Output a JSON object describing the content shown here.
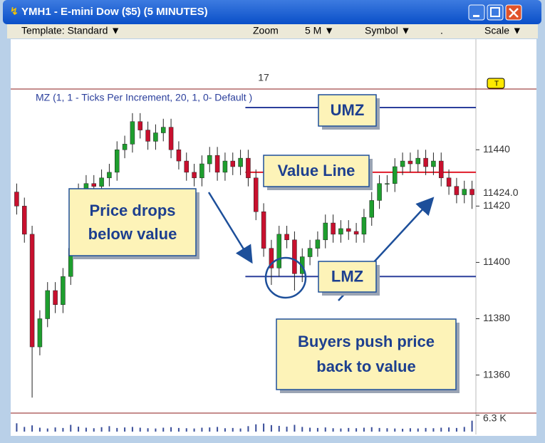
{
  "window": {
    "title": "YMH1 - E-mini Dow ($5) (5 MINUTES)",
    "toolbar": [
      "Template: Standard ▼",
      "Zoom",
      "5 M  ▼",
      "Symbol ▼",
      ".",
      "Scale ▼"
    ]
  },
  "chart_data": {
    "type": "candlestick",
    "indicator_label": "MZ (1, 1 - Ticks Per Increment, 20, 1, 0- Default )",
    "session_label": "17",
    "marker_label": "T",
    "open": [
      11425,
      11420,
      11410,
      11370,
      11380,
      11390,
      11385,
      11395,
      11405,
      11425,
      11428,
      11427,
      11430,
      11432,
      11440,
      11442,
      11450,
      11447,
      11443,
      11446,
      11448,
      11440,
      11436,
      11432,
      11430,
      11435,
      11438,
      11432,
      11436,
      11434,
      11437,
      11430,
      11418,
      11405,
      11398,
      11410,
      11408,
      11396,
      11402,
      11405,
      11408,
      11414,
      11410,
      11412,
      11411,
      11410,
      11416,
      11422,
      11428,
      11428,
      11434,
      11436,
      11435,
      11437,
      11434,
      11436,
      11430,
      11427,
      11424,
      11426
    ],
    "high": [
      11428,
      11423,
      11413,
      11383,
      11393,
      11393,
      11398,
      11408,
      11428,
      11431,
      11431,
      11433,
      11435,
      11443,
      11445,
      11453,
      11453,
      11450,
      11449,
      11451,
      11451,
      11443,
      11439,
      11435,
      11438,
      11441,
      11441,
      11439,
      11439,
      11440,
      11440,
      11433,
      11421,
      11408,
      11413,
      11413,
      11411,
      11405,
      11408,
      11411,
      11417,
      11417,
      11415,
      11415,
      11414,
      11419,
      11425,
      11431,
      11431,
      11437,
      11439,
      11439,
      11440,
      11440,
      11439,
      11439,
      11433,
      11430,
      11429,
      11429
    ],
    "low": [
      11417,
      11407,
      11352,
      11367,
      11377,
      11382,
      11382,
      11392,
      11402,
      11422,
      11424,
      11424,
      11427,
      11429,
      11437,
      11439,
      11444,
      11440,
      11440,
      11443,
      11437,
      11433,
      11429,
      11427,
      11427,
      11432,
      11429,
      11429,
      11431,
      11431,
      11427,
      11415,
      11402,
      11392,
      11395,
      11405,
      11390,
      11393,
      11399,
      11402,
      11405,
      11407,
      11407,
      11408,
      11407,
      11407,
      11413,
      11419,
      11425,
      11425,
      11431,
      11432,
      11432,
      11431,
      11431,
      11427,
      11424,
      11421,
      11421,
      11419
    ],
    "close": [
      11420,
      11410,
      11370,
      11380,
      11390,
      11385,
      11395,
      11405,
      11425,
      11428,
      11427,
      11430,
      11432,
      11440,
      11442,
      11450,
      11447,
      11443,
      11446,
      11448,
      11440,
      11436,
      11432,
      11430,
      11435,
      11438,
      11432,
      11436,
      11434,
      11437,
      11430,
      11418,
      11405,
      11398,
      11410,
      11408,
      11396,
      11402,
      11405,
      11408,
      11414,
      11410,
      11412,
      11411,
      11410,
      11416,
      11422,
      11428,
      11428,
      11434,
      11436,
      11435,
      11437,
      11434,
      11436,
      11430,
      11427,
      11424,
      11426,
      11424
    ],
    "up_color": "#1e9e2e",
    "down_color": "#c8102e",
    "volume": [
      3200,
      1800,
      2400,
      1500,
      1200,
      1600,
      1400,
      2600,
      1900,
      1500,
      1300,
      1700,
      2100,
      1400,
      1600,
      1800,
      1500,
      1300,
      1200,
      1500,
      1700,
      1400,
      1300,
      1200,
      1500,
      1600,
      1800,
      1300,
      1400,
      1200,
      2100,
      2800,
      3100,
      2500,
      2200,
      1900,
      2600,
      1800,
      1500,
      1400,
      1600,
      1300,
      1200,
      1400,
      1300,
      1500,
      1700,
      1400,
      1300,
      1200,
      1100,
      1300,
      1200,
      1400,
      1300,
      1500,
      1600,
      1400,
      1800,
      4200
    ],
    "volume_color": "#3a4e9a",
    "ylim": [
      11347,
      11478
    ],
    "yticks": [
      11360,
      11380,
      11400,
      11420,
      11440
    ],
    "vlim": [
      0,
      6300
    ],
    "vticks": [
      {
        "value": 6300,
        "label": "6.3 K"
      }
    ],
    "last_price": {
      "value": 11424,
      "label": "11424.0"
    },
    "zones": [
      {
        "name": "UMZ",
        "value": 11455,
        "color": "#2b3f9c"
      },
      {
        "name": "Value Line",
        "value": 11432,
        "color": "#e01b2a"
      },
      {
        "name": "LMZ",
        "value": 11395,
        "color": "#2b3f9c"
      }
    ],
    "annotations": [
      "Price drops",
      "below value",
      "Buyers push price",
      "back to value"
    ]
  }
}
